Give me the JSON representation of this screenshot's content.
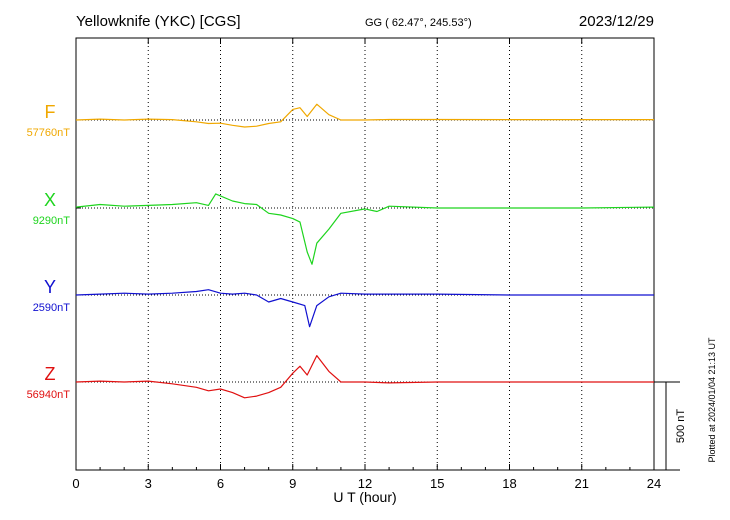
{
  "header": {
    "station": "Yellowknife (YKC)  [CGS]",
    "coords": "GG ( 62.47°, 245.53°)",
    "date": "2023/12/29"
  },
  "side_note": "Plotted at 2024/01/04 21:13 UT",
  "scale_label": "500 nT",
  "chart_data": {
    "type": "line",
    "xlabel": "U T (hour)",
    "xlim": [
      0,
      24
    ],
    "xticks": [
      "0",
      "3",
      "6",
      "9",
      "12",
      "15",
      "18",
      "21",
      "24"
    ],
    "scale_bar_nT": 500,
    "series": [
      {
        "name": "F",
        "baseline_label": "57760nT",
        "color": "#f0a800",
        "x": [
          0,
          1,
          2,
          3,
          4,
          5,
          5.5,
          6,
          6.5,
          7,
          7.5,
          8,
          8.5,
          9,
          9.3,
          9.6,
          10,
          10.5,
          11,
          12,
          13,
          15,
          18,
          21,
          24
        ],
        "y": [
          0,
          5,
          0,
          5,
          2,
          -10,
          -20,
          -18,
          -30,
          -40,
          -35,
          -20,
          -10,
          60,
          70,
          20,
          90,
          30,
          0,
          0,
          3,
          3,
          2,
          2,
          2
        ]
      },
      {
        "name": "X",
        "baseline_label": "9290nT",
        "color": "#1ed41e",
        "x": [
          0,
          1,
          2,
          3,
          4,
          5,
          5.5,
          5.8,
          6.5,
          7,
          7.5,
          8,
          8.5,
          9,
          9.3,
          9.6,
          9.8,
          10,
          10.5,
          11,
          12,
          12.5,
          13,
          15,
          18,
          21,
          24
        ],
        "y": [
          5,
          20,
          10,
          15,
          20,
          30,
          15,
          80,
          40,
          25,
          20,
          -30,
          -40,
          -60,
          -80,
          -250,
          -320,
          -200,
          -120,
          -30,
          -5,
          -20,
          10,
          0,
          0,
          0,
          5
        ]
      },
      {
        "name": "Y",
        "baseline_label": "2590nT",
        "color": "#1010d0",
        "x": [
          0,
          1,
          2,
          3,
          4,
          5,
          5.5,
          6,
          6.5,
          7,
          7.5,
          8,
          8.5,
          9,
          9.5,
          9.7,
          10,
          10.5,
          11,
          12,
          13,
          15,
          18,
          21,
          24
        ],
        "y": [
          0,
          5,
          10,
          5,
          10,
          20,
          30,
          10,
          5,
          10,
          0,
          -40,
          -20,
          -40,
          -60,
          -180,
          -60,
          -10,
          10,
          5,
          5,
          5,
          0,
          0,
          0
        ]
      },
      {
        "name": "Z",
        "baseline_label": "56940nT",
        "color": "#e01010",
        "x": [
          0,
          1,
          2,
          3,
          4,
          5,
          5.5,
          6,
          6.5,
          7,
          7.5,
          8,
          8.5,
          9,
          9.3,
          9.6,
          10,
          10.5,
          11,
          12,
          13,
          15,
          18,
          21,
          24
        ],
        "y": [
          0,
          5,
          0,
          5,
          -10,
          -30,
          -50,
          -40,
          -60,
          -90,
          -80,
          -60,
          -30,
          50,
          90,
          40,
          150,
          60,
          0,
          0,
          -5,
          0,
          0,
          0,
          0
        ]
      }
    ]
  }
}
